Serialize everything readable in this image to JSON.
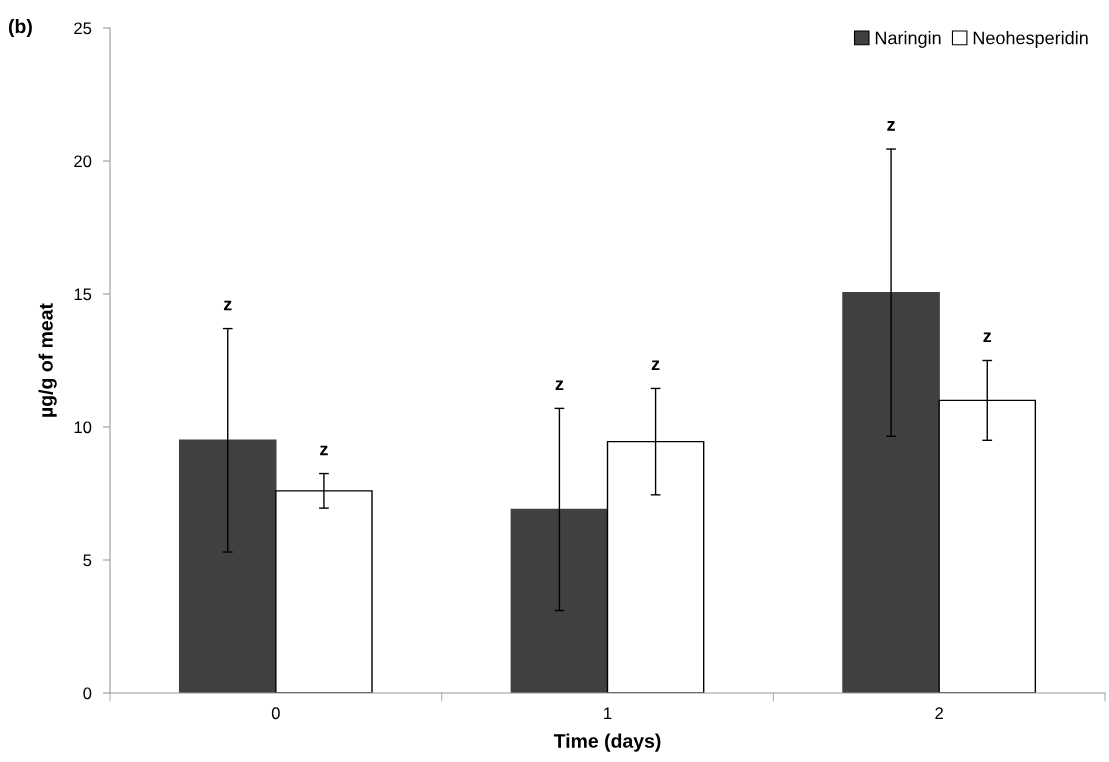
{
  "chart_data": {
    "type": "bar",
    "title": "(b)",
    "xlabel": "Time (days)",
    "ylabel": "µg/g of meat",
    "categories": [
      "0",
      "1",
      "2"
    ],
    "series": [
      {
        "name": "Naringin",
        "color": "#404040",
        "values": [
          9.5,
          6.9,
          15.05
        ],
        "errors": [
          4.2,
          3.8,
          5.4
        ]
      },
      {
        "name": "Neohesperidin",
        "color": "#ffffff",
        "values": [
          7.6,
          9.45,
          11.0
        ],
        "errors": [
          0.65,
          2.0,
          1.5
        ]
      }
    ],
    "annotations": [
      "z",
      "z",
      "z",
      "z",
      "z",
      "z"
    ],
    "ylim": [
      0,
      25
    ],
    "yticks": [
      0,
      5,
      10,
      15,
      20,
      25
    ],
    "grid": false,
    "legend": "top right"
  }
}
